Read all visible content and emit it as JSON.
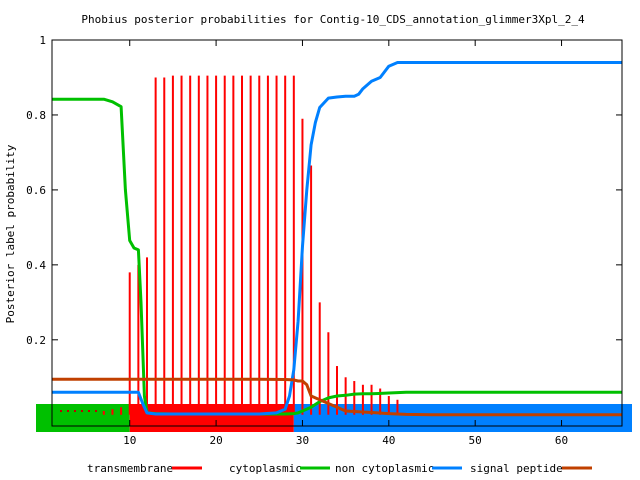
{
  "chart_data": {
    "type": "line",
    "title": "Phobius posterior probabilities for Contig-10_CDS_annotation_glimmer3Xpl_2_4",
    "xlabel": "",
    "ylabel": "Posterior label probability",
    "xlim": [
      1,
      67
    ],
    "ylim": [
      -0.03,
      1.0
    ],
    "grid": false,
    "legend_position": "bottom",
    "x_ticks": [
      10,
      20,
      30,
      40,
      50,
      60
    ],
    "y_ticks": [
      0.2,
      0.4,
      0.6,
      0.8,
      1
    ],
    "y_tick_labels": [
      "0.2",
      "0.4",
      "0.6",
      "0.8",
      "1"
    ],
    "x_tick_labels": [
      "10",
      "20",
      "30",
      "40",
      "50",
      "60"
    ],
    "colors": {
      "transmembrane": "#ff0000",
      "cytoplasmic": "#00c000",
      "non_cytoplasmic": "#0080ff",
      "signal_peptide": "#c04000"
    },
    "legend": [
      {
        "key": "transmembrane",
        "label": "transmembrane",
        "color": "#ff0000"
      },
      {
        "key": "cytoplasmic",
        "label": "cytoplasmic",
        "color": "#00c000"
      },
      {
        "key": "non_cytoplasmic",
        "label": "non cytoplasmic",
        "color": "#0080ff"
      },
      {
        "key": "signal_peptide",
        "label": "signal peptide",
        "color": "#c04000"
      }
    ],
    "topology_bar": [
      {
        "label": "cytoplasmic",
        "start": 1,
        "end": 10,
        "color": "#00c000"
      },
      {
        "label": "transmembrane",
        "start": 10,
        "end": 29,
        "color": "#ff0000"
      },
      {
        "label": "non cytoplasmic",
        "start": 29,
        "end": 67,
        "color": "#0080ff"
      }
    ],
    "transmembrane_impulses": {
      "x": [
        1,
        2,
        3,
        4,
        5,
        6,
        7,
        8,
        9,
        10,
        11,
        12,
        13,
        14,
        15,
        16,
        17,
        18,
        19,
        20,
        21,
        22,
        23,
        24,
        25,
        26,
        27,
        28,
        29,
        30,
        31,
        32,
        33,
        34,
        35,
        36,
        37,
        38,
        39,
        40,
        41
      ],
      "y": [
        0.0,
        0.0,
        0.0,
        0.0,
        0.0,
        0.0,
        0.01,
        0.015,
        0.02,
        0.38,
        0.4,
        0.42,
        0.9,
        0.9,
        0.905,
        0.905,
        0.905,
        0.905,
        0.905,
        0.905,
        0.905,
        0.905,
        0.905,
        0.905,
        0.905,
        0.905,
        0.905,
        0.905,
        0.905,
        0.79,
        0.665,
        0.3,
        0.22,
        0.13,
        0.1,
        0.09,
        0.08,
        0.08,
        0.07,
        0.05,
        0.04
      ]
    },
    "series": [
      {
        "name": "cytoplasmic",
        "color": "#00c000",
        "x": [
          1,
          2,
          3,
          4,
          5,
          6,
          7,
          8,
          9,
          9.5,
          10,
          10.5,
          11,
          11.3,
          11.7,
          12,
          13,
          15,
          20,
          25,
          28,
          29,
          29.5,
          30,
          31,
          32,
          33,
          34,
          35,
          36,
          37,
          38,
          40,
          42,
          45,
          50,
          55,
          60,
          67
        ],
        "y": [
          0.842,
          0.842,
          0.842,
          0.842,
          0.842,
          0.842,
          0.842,
          0.835,
          0.822,
          0.6,
          0.465,
          0.445,
          0.44,
          0.3,
          0.05,
          0.005,
          0.003,
          0.002,
          0.002,
          0.002,
          0.002,
          0.003,
          0.005,
          0.01,
          0.02,
          0.035,
          0.045,
          0.05,
          0.052,
          0.055,
          0.056,
          0.056,
          0.058,
          0.06,
          0.06,
          0.06,
          0.06,
          0.06,
          0.06
        ]
      },
      {
        "name": "non cytoplasmic",
        "color": "#0080ff",
        "x": [
          1,
          2,
          4,
          6,
          8,
          10,
          11,
          11.5,
          12,
          13,
          15,
          20,
          25,
          27,
          28,
          28.5,
          29,
          29.5,
          30,
          30.5,
          31,
          31.5,
          32,
          33,
          34,
          35,
          36,
          36.5,
          37,
          38,
          39,
          40,
          41,
          42,
          45,
          50,
          55,
          60,
          67
        ],
        "y": [
          0.06,
          0.06,
          0.06,
          0.06,
          0.06,
          0.06,
          0.06,
          0.03,
          0.005,
          0.002,
          0.002,
          0.002,
          0.002,
          0.005,
          0.015,
          0.05,
          0.12,
          0.25,
          0.45,
          0.6,
          0.72,
          0.78,
          0.82,
          0.845,
          0.848,
          0.85,
          0.85,
          0.855,
          0.87,
          0.89,
          0.9,
          0.93,
          0.94,
          0.94,
          0.94,
          0.94,
          0.94,
          0.94,
          0.94
        ]
      },
      {
        "name": "signal peptide",
        "color": "#c04000",
        "x": [
          1,
          5,
          10,
          15,
          20,
          25,
          28,
          29,
          29.5,
          30,
          30.5,
          31,
          32,
          33,
          34,
          35,
          38,
          40,
          42,
          45,
          50,
          55,
          60,
          67
        ],
        "y": [
          0.095,
          0.095,
          0.095,
          0.095,
          0.095,
          0.095,
          0.094,
          0.093,
          0.09,
          0.09,
          0.08,
          0.05,
          0.04,
          0.03,
          0.02,
          0.01,
          0.006,
          0.003,
          0.001,
          0.0,
          0.0,
          0.0,
          0.0,
          0.0
        ]
      }
    ]
  }
}
